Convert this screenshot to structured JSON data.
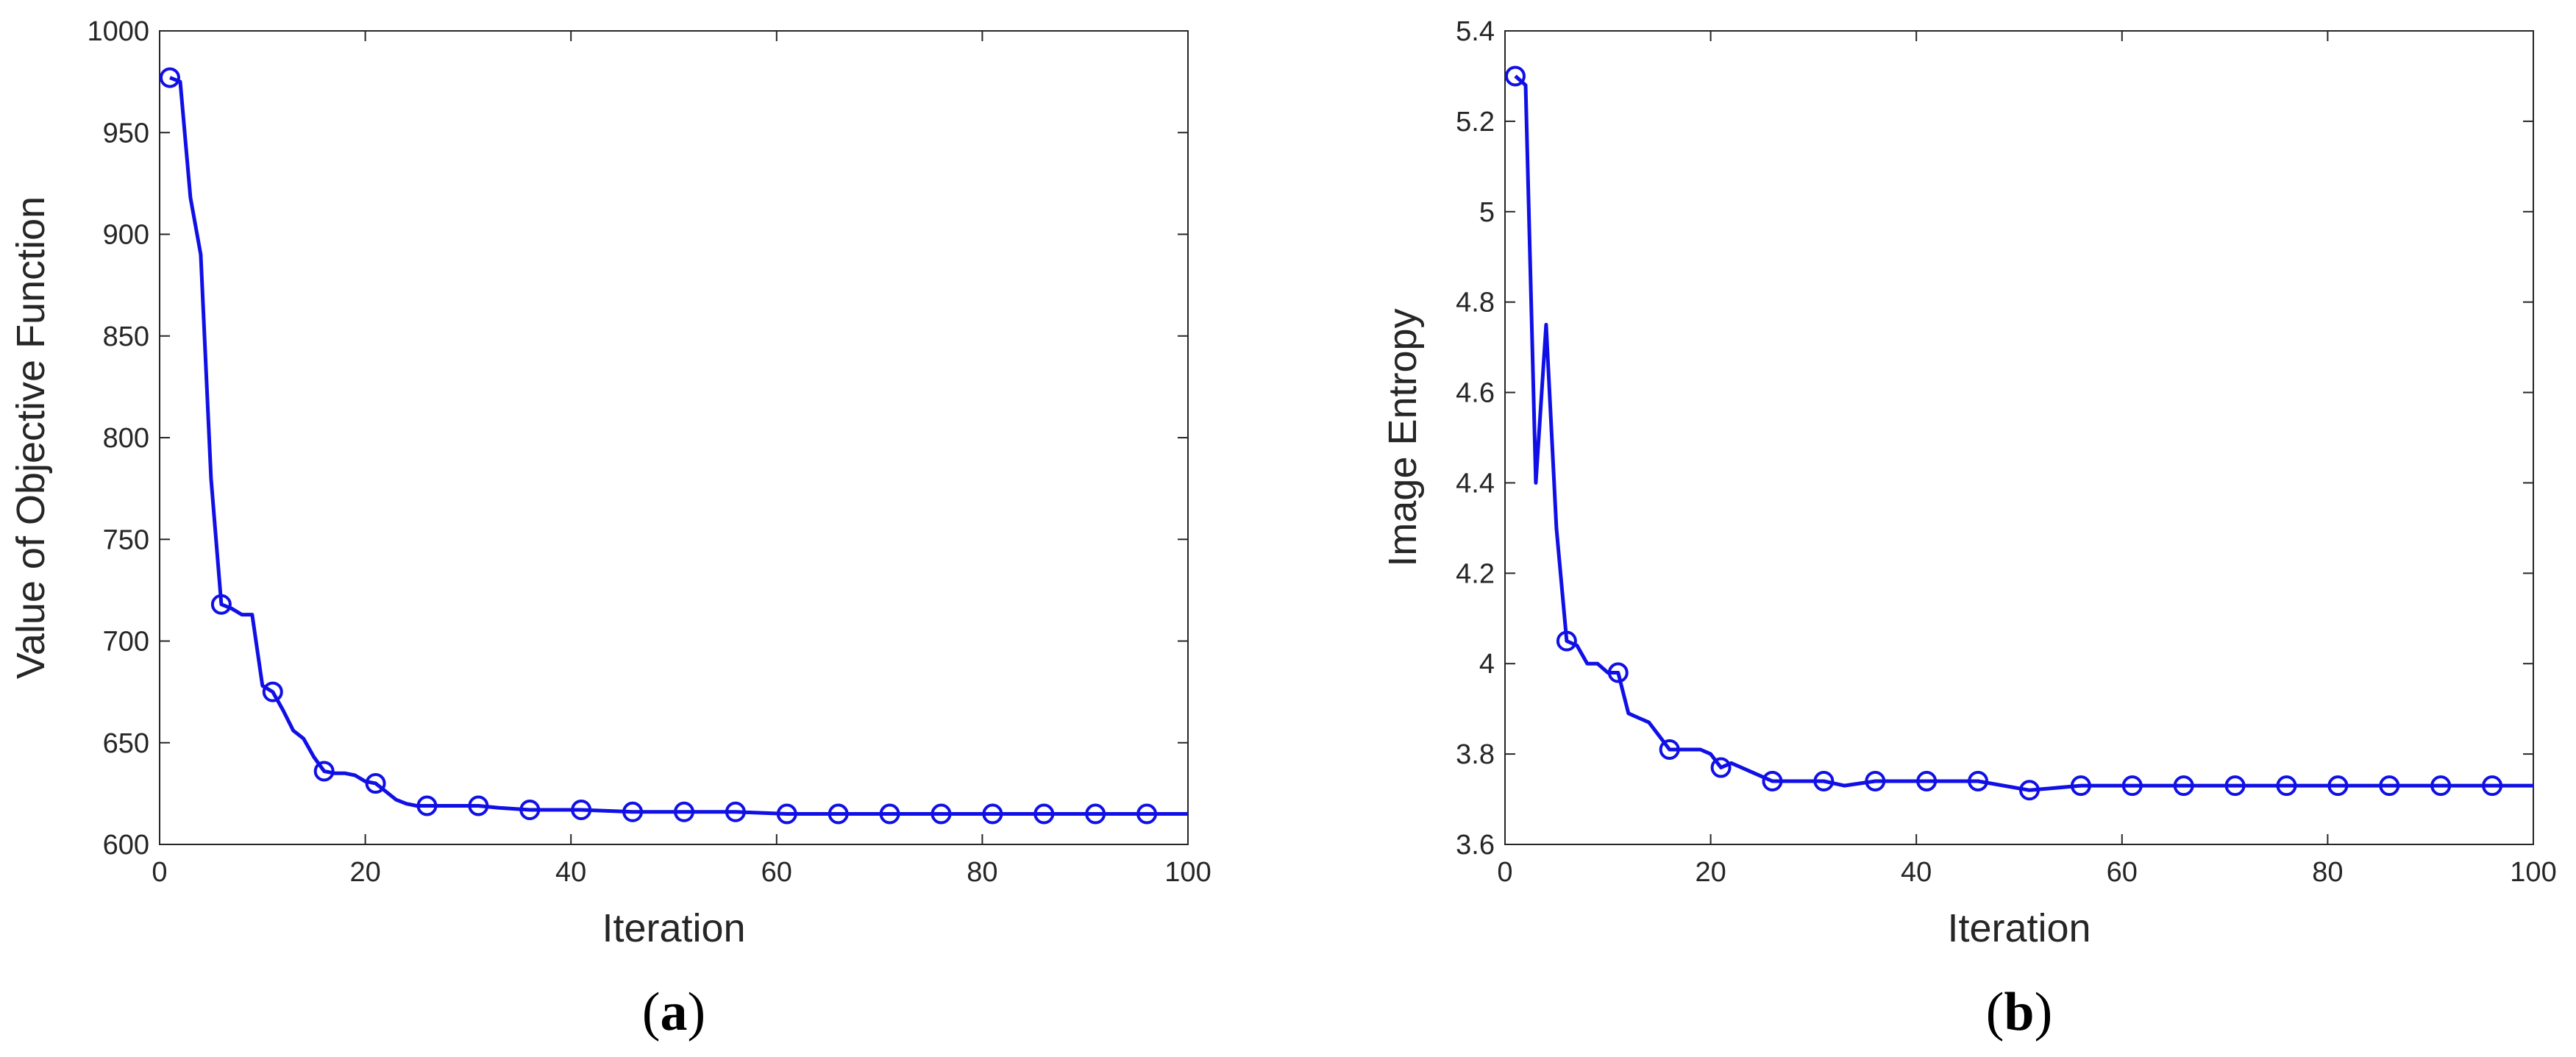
{
  "colors": {
    "line": "#1010e6",
    "axes": "#262626"
  },
  "chart_data": [
    {
      "type": "line",
      "panel_label": "a",
      "xlabel": "Iteration",
      "ylabel": "Value of Objective Function",
      "xlim": [
        0,
        100
      ],
      "ylim": [
        600,
        1000
      ],
      "xticks": [
        0,
        20,
        40,
        60,
        80,
        100
      ],
      "yticks": [
        600,
        650,
        700,
        750,
        800,
        850,
        900,
        950,
        1000
      ],
      "grid": false,
      "legend": "none",
      "marker": "circle",
      "series": [
        {
          "x": [
            1,
            2,
            3,
            4,
            5,
            6,
            7,
            8,
            9,
            10,
            11,
            12,
            13,
            14,
            15,
            16,
            17,
            18,
            19,
            20,
            21,
            22,
            23,
            24,
            25,
            26,
            28,
            30,
            31,
            33,
            36,
            41,
            46,
            51,
            56,
            61,
            66,
            71,
            76,
            81,
            86,
            91,
            96,
            100
          ],
          "y": [
            977,
            975,
            918,
            890,
            780,
            718,
            716,
            713,
            713,
            678,
            675,
            666,
            656,
            652,
            643,
            636,
            635,
            635,
            634,
            631,
            630,
            626,
            622,
            620,
            619,
            619,
            619,
            619,
            619,
            618,
            617,
            617,
            616,
            616,
            616,
            615,
            615,
            615,
            615,
            615,
            615,
            615,
            615,
            615
          ],
          "markers_x": [
            1,
            6,
            11,
            16,
            21,
            26,
            31,
            36,
            41,
            46,
            51,
            56,
            61,
            66,
            71,
            76,
            81,
            86,
            91,
            96
          ],
          "markers_y": [
            977,
            718,
            675,
            636,
            630,
            619,
            619,
            617,
            617,
            616,
            616,
            616,
            615,
            615,
            615,
            615,
            615,
            615,
            615,
            615
          ]
        }
      ]
    },
    {
      "type": "line",
      "panel_label": "b",
      "xlabel": "Iteration",
      "ylabel": "Image Entropy",
      "xlim": [
        0,
        100
      ],
      "ylim": [
        3.6,
        5.4
      ],
      "xticks": [
        0,
        20,
        40,
        60,
        80,
        100
      ],
      "yticks": [
        3.6,
        3.8,
        4,
        4.2,
        4.4,
        4.6,
        4.8,
        5,
        5.2,
        5.4
      ],
      "grid": false,
      "legend": "none",
      "marker": "circle",
      "series": [
        {
          "x": [
            1,
            2,
            3,
            4,
            5,
            6,
            7,
            8,
            9,
            10,
            11,
            12,
            13,
            14,
            15,
            16,
            17,
            18,
            19,
            20,
            21,
            22,
            23,
            24,
            25,
            26,
            28,
            30,
            31,
            33,
            36,
            41,
            46,
            51,
            56,
            61,
            66,
            71,
            76,
            81,
            86,
            91,
            96,
            100
          ],
          "y": [
            5.3,
            5.28,
            4.4,
            4.75,
            4.3,
            4.05,
            4.04,
            4.0,
            4.0,
            3.98,
            3.98,
            3.89,
            3.88,
            3.87,
            3.84,
            3.81,
            3.81,
            3.81,
            3.81,
            3.8,
            3.77,
            3.78,
            3.77,
            3.76,
            3.75,
            3.74,
            3.74,
            3.74,
            3.74,
            3.73,
            3.74,
            3.74,
            3.74,
            3.72,
            3.73,
            3.73,
            3.73,
            3.73,
            3.73,
            3.73,
            3.73,
            3.73,
            3.73,
            3.73
          ],
          "markers_x": [
            1,
            6,
            11,
            16,
            21,
            26,
            31,
            36,
            41,
            46,
            51,
            56,
            61,
            66,
            71,
            76,
            81,
            86,
            91,
            96
          ],
          "markers_y": [
            5.3,
            4.05,
            3.98,
            3.81,
            3.77,
            3.74,
            3.74,
            3.74,
            3.74,
            3.74,
            3.72,
            3.73,
            3.73,
            3.73,
            3.73,
            3.73,
            3.73,
            3.73,
            3.73,
            3.73
          ]
        }
      ]
    }
  ]
}
